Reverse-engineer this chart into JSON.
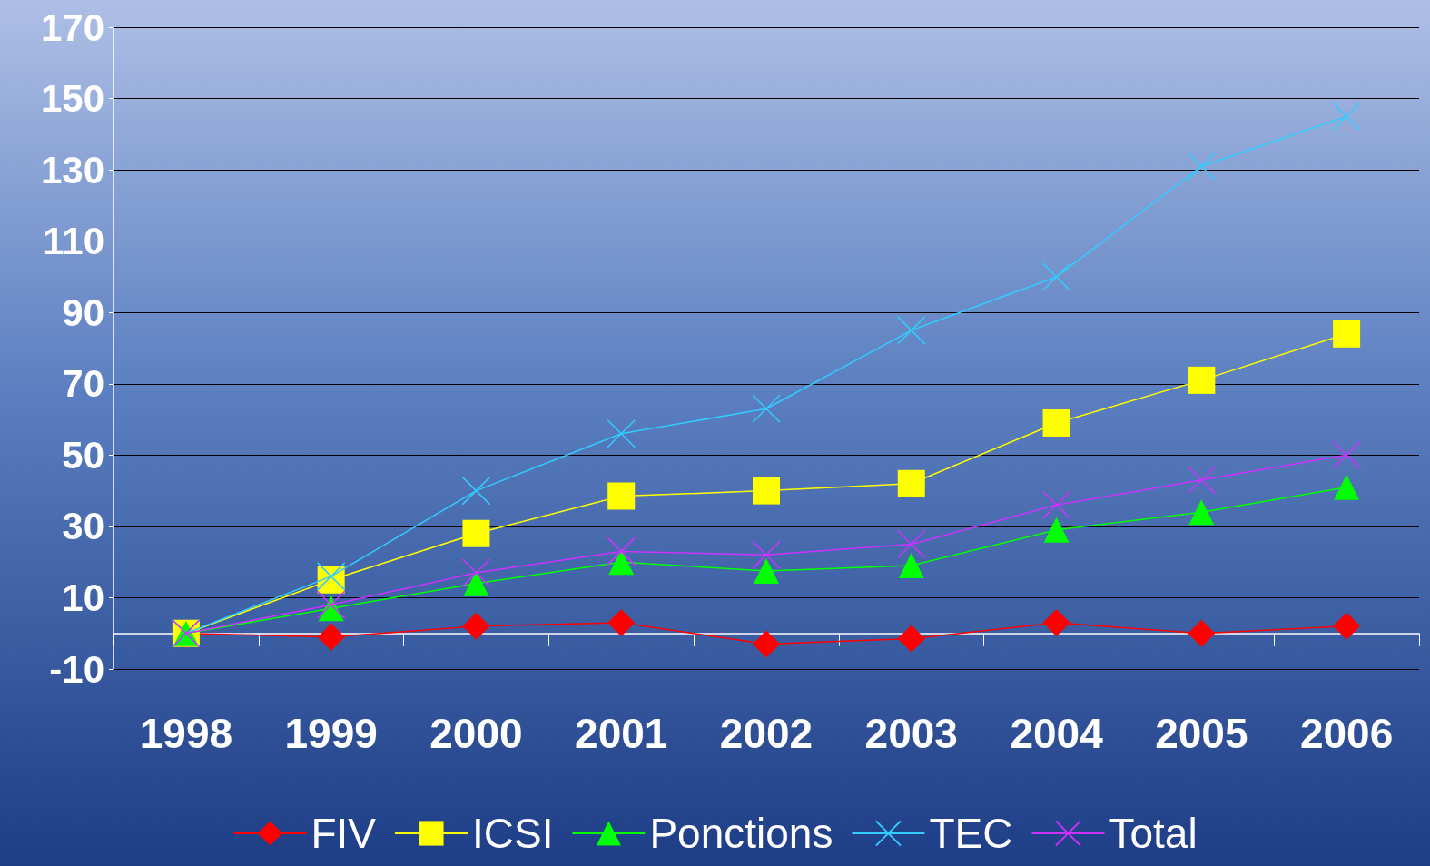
{
  "chart_data": {
    "type": "line",
    "categories": [
      "1998",
      "1999",
      "2000",
      "2001",
      "2002",
      "2003",
      "2004",
      "2005",
      "2006"
    ],
    "ylim": [
      -10,
      170
    ],
    "yticks": [
      -10,
      10,
      30,
      50,
      70,
      90,
      110,
      130,
      150,
      170
    ],
    "grid": "y",
    "legend": "bottom",
    "series": [
      {
        "name": "FIV",
        "color": "#ff0000",
        "marker": "diamond",
        "values": [
          0,
          -1,
          2,
          3,
          -3,
          -1.5,
          3,
          0,
          2
        ]
      },
      {
        "name": "ICSI",
        "color": "#ffff00",
        "marker": "square",
        "values": [
          0,
          15,
          28,
          38.5,
          40,
          42,
          59,
          71,
          84
        ]
      },
      {
        "name": "Ponctions",
        "color": "#00ff00",
        "marker": "triangle",
        "values": [
          0,
          7,
          14,
          20,
          17.5,
          19,
          29,
          34,
          41
        ]
      },
      {
        "name": "TEC",
        "color": "#33ccff",
        "marker": "cross",
        "values": [
          0,
          16,
          40,
          56,
          63,
          85,
          100,
          131,
          145
        ]
      },
      {
        "name": "Total",
        "color": "#cc33ff",
        "marker": "cross",
        "values": [
          0,
          8,
          17,
          23,
          22,
          25,
          36,
          43,
          50
        ]
      }
    ]
  }
}
